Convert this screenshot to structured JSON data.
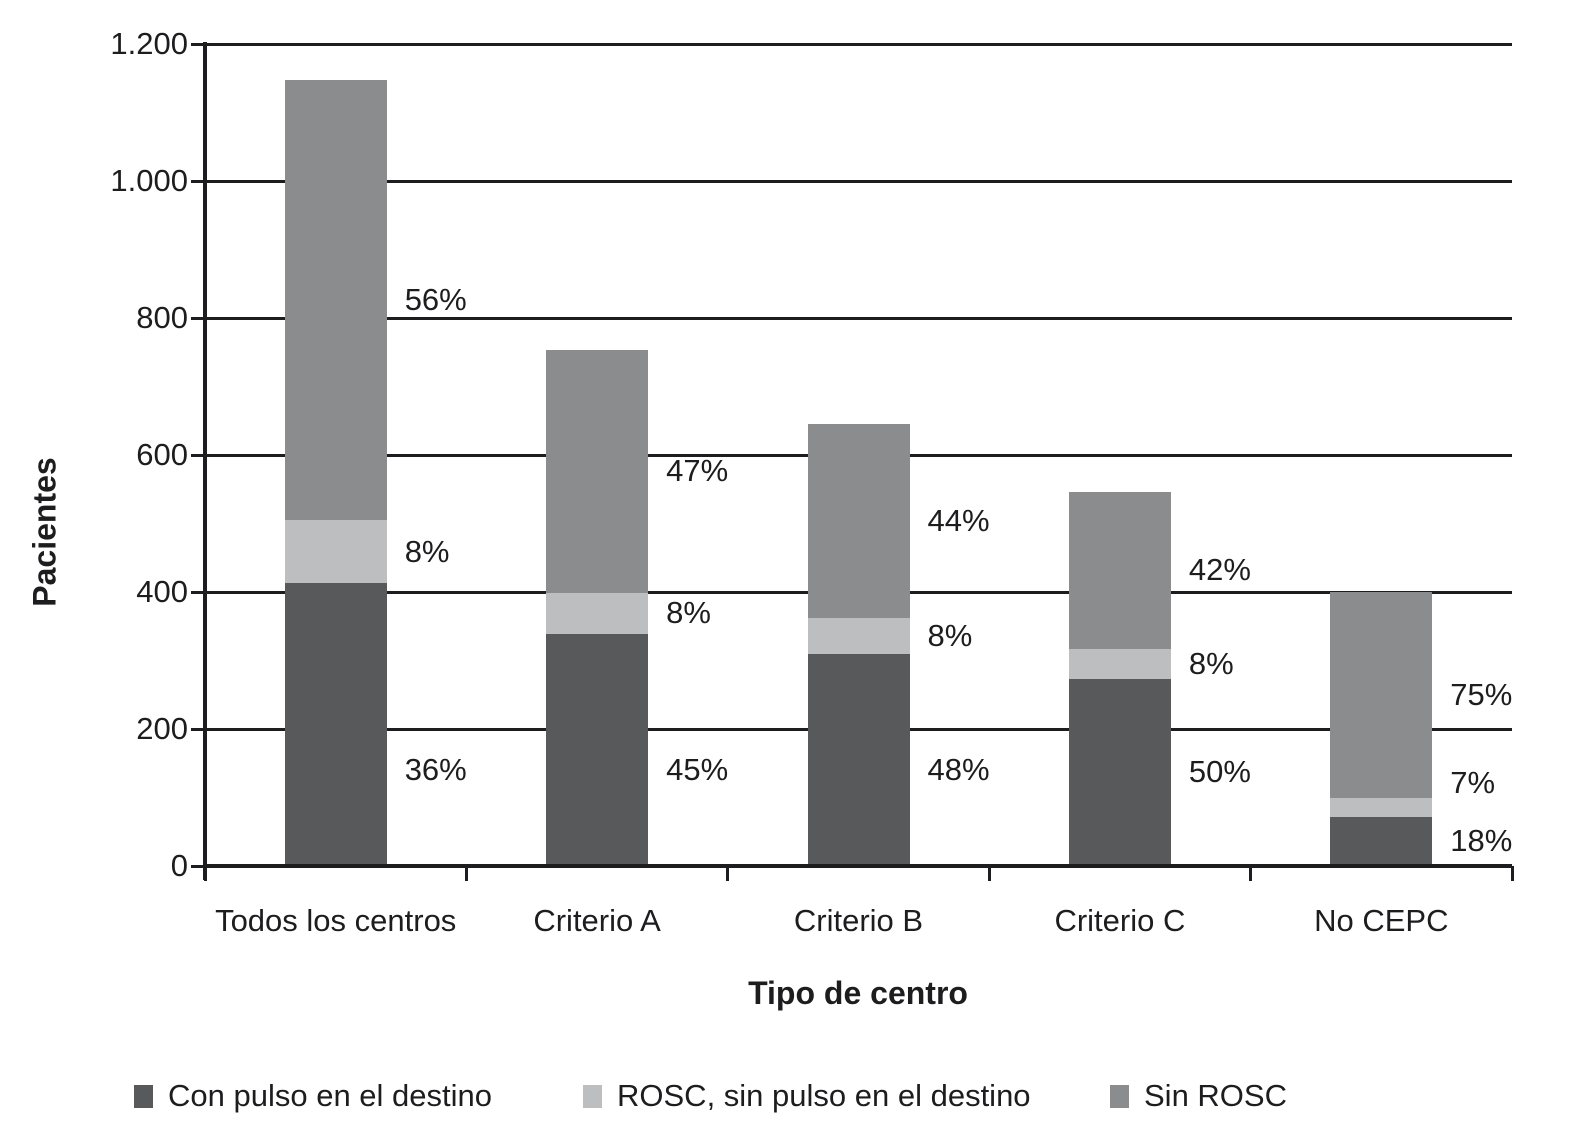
{
  "figure": {
    "ylabel": "Pacientes",
    "xlabel": "Tipo de centro"
  },
  "chart_data": {
    "type": "bar",
    "stacked": true,
    "orientation": "vertical",
    "xlabel": "Tipo de centro",
    "ylabel": "Pacientes",
    "ylim": [
      0,
      1200
    ],
    "yticks": [
      0,
      200,
      400,
      600,
      800,
      1000,
      1200
    ],
    "ytick_labels": [
      "0",
      "200",
      "400",
      "600",
      "800",
      "1.000",
      "1.200"
    ],
    "categories": [
      "Todos los centros",
      "Criterio A",
      "Criterio B",
      "Criterio C",
      "No CEPC"
    ],
    "totals": [
      1148,
      753,
      645,
      546,
      400
    ],
    "series": [
      {
        "name": "Con pulso en el destino",
        "color": "#58595B",
        "values": [
          413,
          339,
          310,
          273,
          72
        ],
        "percent_labels": [
          "36%",
          "45%",
          "48%",
          "50%",
          "18%"
        ]
      },
      {
        "name": "ROSC, sin pulso en el destino",
        "color": "#BCBEC0",
        "values": [
          92,
          60,
          52,
          44,
          28
        ],
        "percent_labels": [
          "8%",
          "8%",
          "8%",
          "8%",
          "7%"
        ]
      },
      {
        "name": "Sin ROSC",
        "color": "#8A8C8E",
        "values": [
          643,
          354,
          283,
          229,
          300
        ],
        "percent_labels": [
          "56%",
          "47%",
          "44%",
          "42%",
          "75%"
        ]
      }
    ],
    "grid": "horizontal",
    "legend_position": "bottom",
    "text_color": "#1d1d1f",
    "background_color": "#ffffff"
  }
}
